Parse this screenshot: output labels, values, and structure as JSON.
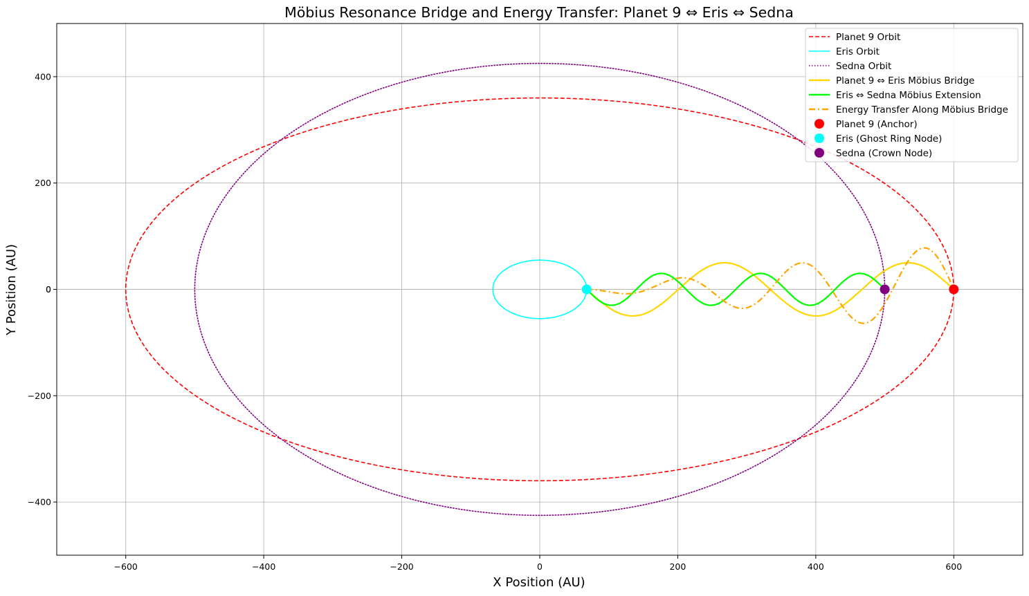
{
  "chart_data": {
    "type": "line",
    "title": "Möbius Resonance Bridge and Energy Transfer: Planet 9 ⇔ Eris ⇔ Sedna",
    "xlabel": "X Position (AU)",
    "ylabel": "Y Position (AU)",
    "xlim": [
      -700,
      700
    ],
    "ylim": [
      -500,
      500
    ],
    "xticks": [
      -600,
      -400,
      -200,
      0,
      200,
      400,
      600
    ],
    "yticks": [
      -400,
      -200,
      0,
      200,
      400
    ],
    "grid": true,
    "legend_position": "top-right",
    "series": [
      {
        "name": "Planet 9 Orbit",
        "kind": "ellipse",
        "a": 600,
        "b": 360,
        "color": "#ff0000",
        "style": "dashed"
      },
      {
        "name": "Eris Orbit",
        "kind": "ellipse",
        "a": 68,
        "b": 55,
        "color": "#00ffff",
        "style": "solid"
      },
      {
        "name": "Sedna Orbit",
        "kind": "ellipse",
        "a": 500,
        "b": 425,
        "color": "#800080",
        "style": "dotted"
      },
      {
        "name": "Planet 9 ⇔ Eris Möbius Bridge",
        "kind": "wave",
        "x_start": 68,
        "x_end": 600,
        "amplitude": 50,
        "cycles": 2,
        "color": "#ffd700",
        "style": "solid"
      },
      {
        "name": "Eris ⇔ Sedna Möbius Extension",
        "kind": "wave",
        "x_start": 68,
        "x_end": 500,
        "amplitude": 30,
        "cycles": 3,
        "color": "#00ff00",
        "style": "solid"
      },
      {
        "name": "Energy Transfer Along Möbius Bridge",
        "kind": "growing_wave",
        "x_start": 68,
        "x_end": 600,
        "amplitude_start": 0,
        "amplitude_end": 85,
        "cycles": 3,
        "color": "#ffa500",
        "style": "dashdot"
      },
      {
        "name": "Planet 9 (Anchor)",
        "kind": "point",
        "x": 600,
        "y": 0,
        "color": "#ff0000"
      },
      {
        "name": "Eris (Ghost Ring Node)",
        "kind": "point",
        "x": 68,
        "y": 0,
        "color": "#00ffff"
      },
      {
        "name": "Sedna (Crown Node)",
        "kind": "point",
        "x": 500,
        "y": 0,
        "color": "#800080"
      }
    ]
  }
}
